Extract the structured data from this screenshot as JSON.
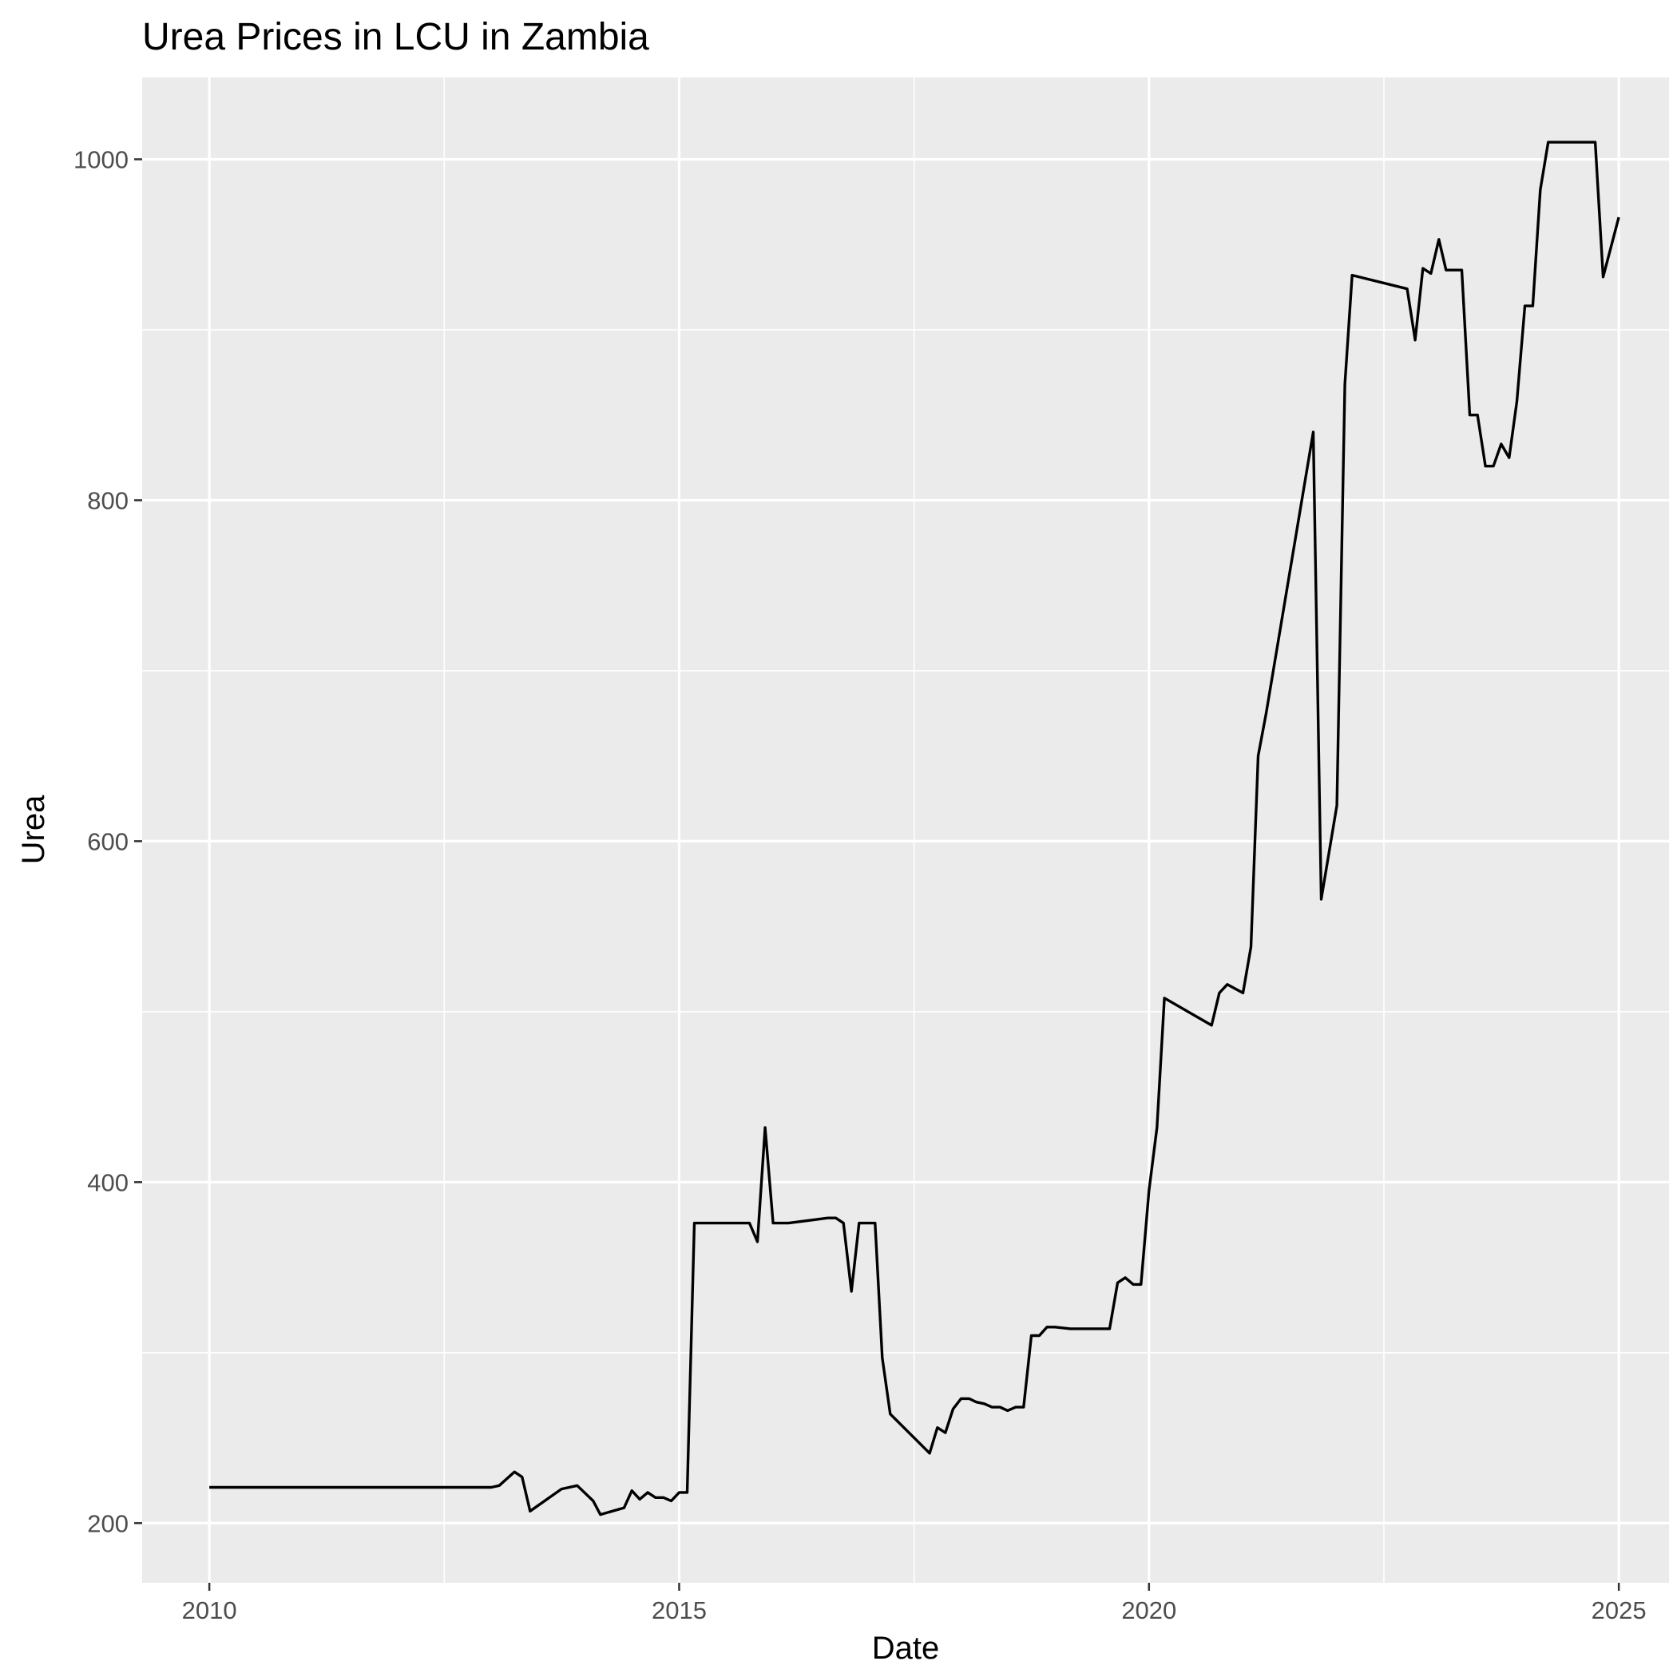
{
  "chart_data": {
    "type": "line",
    "title": "Urea Prices in LCU in Zambia",
    "xlabel": "Date",
    "ylabel": "Urea",
    "xlim": [
      "2009-04-15",
      "2025-07-15"
    ],
    "ylim": [
      165,
      1048
    ],
    "x_ticks": [
      "2010",
      "2015",
      "2020",
      "2025"
    ],
    "y_ticks": [
      200,
      400,
      600,
      800,
      1000
    ],
    "grid": true,
    "legend": "none",
    "colors": {
      "panel": "#ebebeb",
      "grid": "#ffffff",
      "line": "#000000",
      "tick_label": "#4d4d4d"
    },
    "series": [
      {
        "points": [
          [
            "2010-01-01",
            221
          ],
          [
            "2013-01-01",
            221
          ],
          [
            "2013-02-01",
            222
          ],
          [
            "2013-04-01",
            230
          ],
          [
            "2013-05-01",
            227
          ],
          [
            "2013-06-01",
            207
          ],
          [
            "2013-10-01",
            220
          ],
          [
            "2013-12-01",
            222
          ],
          [
            "2014-02-01",
            213
          ],
          [
            "2014-03-01",
            205
          ],
          [
            "2014-06-01",
            209
          ],
          [
            "2014-07-01",
            219
          ],
          [
            "2014-08-01",
            214
          ],
          [
            "2014-09-01",
            218
          ],
          [
            "2014-10-01",
            215
          ],
          [
            "2014-11-01",
            215
          ],
          [
            "2014-12-01",
            213
          ],
          [
            "2015-01-01",
            218
          ],
          [
            "2015-02-01",
            218
          ],
          [
            "2015-03-01",
            376
          ],
          [
            "2015-10-01",
            376
          ],
          [
            "2015-11-01",
            365
          ],
          [
            "2015-12-01",
            432
          ],
          [
            "2016-01-01",
            376
          ],
          [
            "2016-03-01",
            376
          ],
          [
            "2016-08-01",
            379
          ],
          [
            "2016-09-01",
            379
          ],
          [
            "2016-10-01",
            376
          ],
          [
            "2016-11-01",
            336
          ],
          [
            "2016-12-01",
            376
          ],
          [
            "2017-02-01",
            376
          ],
          [
            "2017-03-01",
            297
          ],
          [
            "2017-04-01",
            264
          ],
          [
            "2017-09-01",
            241
          ],
          [
            "2017-10-01",
            256
          ],
          [
            "2017-11-01",
            253
          ],
          [
            "2017-12-01",
            267
          ],
          [
            "2018-01-01",
            273
          ],
          [
            "2018-02-01",
            273
          ],
          [
            "2018-03-01",
            271
          ],
          [
            "2018-04-01",
            270
          ],
          [
            "2018-05-01",
            268
          ],
          [
            "2018-06-01",
            268
          ],
          [
            "2018-07-01",
            266
          ],
          [
            "2018-08-01",
            268
          ],
          [
            "2018-09-01",
            268
          ],
          [
            "2018-10-01",
            310
          ],
          [
            "2018-11-01",
            310
          ],
          [
            "2018-12-01",
            315
          ],
          [
            "2019-01-01",
            315
          ],
          [
            "2019-03-01",
            314
          ],
          [
            "2019-08-01",
            314
          ],
          [
            "2019-09-01",
            341
          ],
          [
            "2019-10-01",
            344
          ],
          [
            "2019-11-01",
            340
          ],
          [
            "2019-12-01",
            340
          ],
          [
            "2020-01-01",
            395
          ],
          [
            "2020-02-01",
            432
          ],
          [
            "2020-03-01",
            508
          ],
          [
            "2020-09-01",
            492
          ],
          [
            "2020-10-01",
            511
          ],
          [
            "2020-11-01",
            516
          ],
          [
            "2021-01-01",
            511
          ],
          [
            "2021-02-01",
            538
          ],
          [
            "2021-03-01",
            650
          ],
          [
            "2021-04-01",
            675
          ],
          [
            "2021-10-01",
            840
          ],
          [
            "2021-11-01",
            566
          ],
          [
            "2022-01-01",
            621
          ],
          [
            "2022-02-01",
            868
          ],
          [
            "2022-03-01",
            932
          ],
          [
            "2022-10-01",
            924
          ],
          [
            "2022-11-01",
            894
          ],
          [
            "2022-12-01",
            936
          ],
          [
            "2023-01-01",
            933
          ],
          [
            "2023-02-01",
            953
          ],
          [
            "2023-03-01",
            935
          ],
          [
            "2023-05-01",
            935
          ],
          [
            "2023-06-01",
            850
          ],
          [
            "2023-07-01",
            850
          ],
          [
            "2023-08-01",
            820
          ],
          [
            "2023-09-01",
            820
          ],
          [
            "2023-10-01",
            833
          ],
          [
            "2023-11-01",
            825
          ],
          [
            "2023-12-01",
            858
          ],
          [
            "2024-01-01",
            914
          ],
          [
            "2024-02-01",
            914
          ],
          [
            "2024-03-01",
            982
          ],
          [
            "2024-04-01",
            1010
          ],
          [
            "2024-10-01",
            1010
          ],
          [
            "2024-11-01",
            931
          ],
          [
            "2025-01-01",
            966
          ]
        ]
      }
    ]
  }
}
